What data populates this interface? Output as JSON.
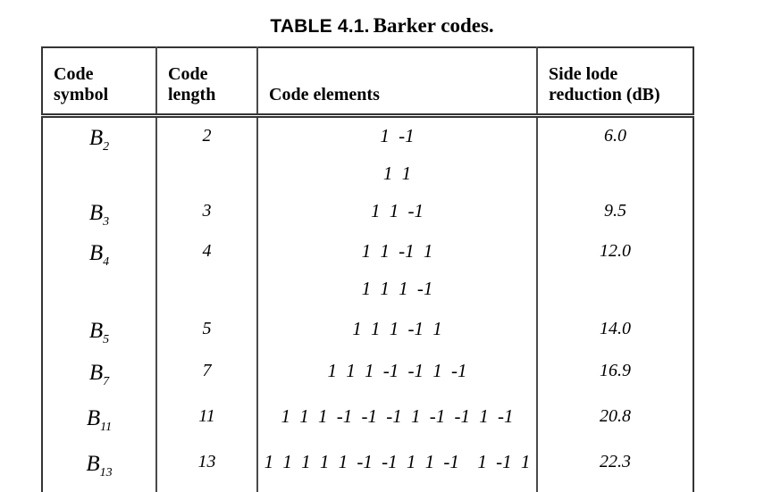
{
  "title": {
    "label": "TABLE 4.1.",
    "caption": "Barker codes."
  },
  "colors": {
    "background": "#ffffff",
    "text": "#000000",
    "border": "#343434"
  },
  "table": {
    "headers": {
      "symbol": {
        "line1": "Code",
        "line2": "symbol"
      },
      "length": {
        "line1": "Code",
        "line2": "length"
      },
      "elements": {
        "line1": "Code elements"
      },
      "reduction": {
        "line1": "Side lode",
        "line2": "reduction (dB)"
      }
    },
    "rows": [
      {
        "symbol": "B",
        "sub": "2",
        "length": "2",
        "code1": "1 -1",
        "code2": "1 1",
        "reduction": "6.0"
      },
      {
        "symbol": "B",
        "sub": "3",
        "length": "3",
        "code1": "1 1 -1",
        "reduction": "9.5"
      },
      {
        "symbol": "B",
        "sub": "4",
        "length": "4",
        "code1": "1 1 -1 1",
        "code2": "1 1 1 -1",
        "reduction": "12.0"
      },
      {
        "symbol": "B",
        "sub": "5",
        "length": "5",
        "code1": "1 1 1 -1 1",
        "reduction": "14.0"
      },
      {
        "symbol": "B",
        "sub": "7",
        "length": "7",
        "code1": "1 1 1 -1 -1 1 -1",
        "reduction": "16.9"
      },
      {
        "symbol": "B",
        "sub": "11",
        "length": "11",
        "code1": "1 1 1 -1 -1 -1 1 -1 -1 1 -1",
        "reduction": "20.8"
      },
      {
        "symbol": "B",
        "sub": "13",
        "length": "13",
        "code1": "1 1 1 1 1 -1 -1 1 1 -1  1 -1 1",
        "reduction": "22.3"
      }
    ]
  }
}
